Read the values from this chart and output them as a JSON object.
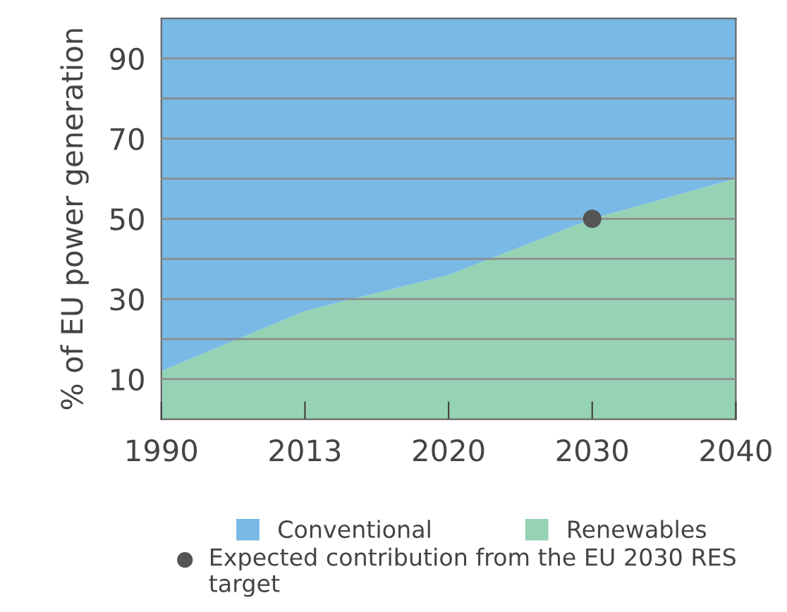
{
  "chart_data": {
    "type": "area",
    "stacked": true,
    "ylabel": "% of EU power generation",
    "categories": [
      "1990",
      "2013",
      "2020",
      "2030",
      "2040"
    ],
    "series": [
      {
        "name": "Renewables",
        "color": "#96d2b4",
        "values": [
          12,
          27,
          36,
          50,
          60
        ]
      },
      {
        "name": "Conventional",
        "color": "#78b9e5",
        "values": [
          88,
          73,
          64,
          50,
          40
        ]
      },
      {
        "name": "Expected contribution from the EU 2030 RES target",
        "type": "scatter",
        "color": "#555555",
        "values": [
          null,
          null,
          null,
          50,
          null
        ],
        "marker": "circle"
      }
    ],
    "ylim": [
      0,
      100
    ],
    "yticks": [
      10,
      {
        "value": 20,
        "label": null
      },
      30,
      {
        "value": 40,
        "label": null
      },
      50,
      {
        "value": 60,
        "label": null
      },
      70,
      {
        "value": 80,
        "label": null
      },
      90
    ],
    "grid": "y",
    "legend": "bottom"
  }
}
